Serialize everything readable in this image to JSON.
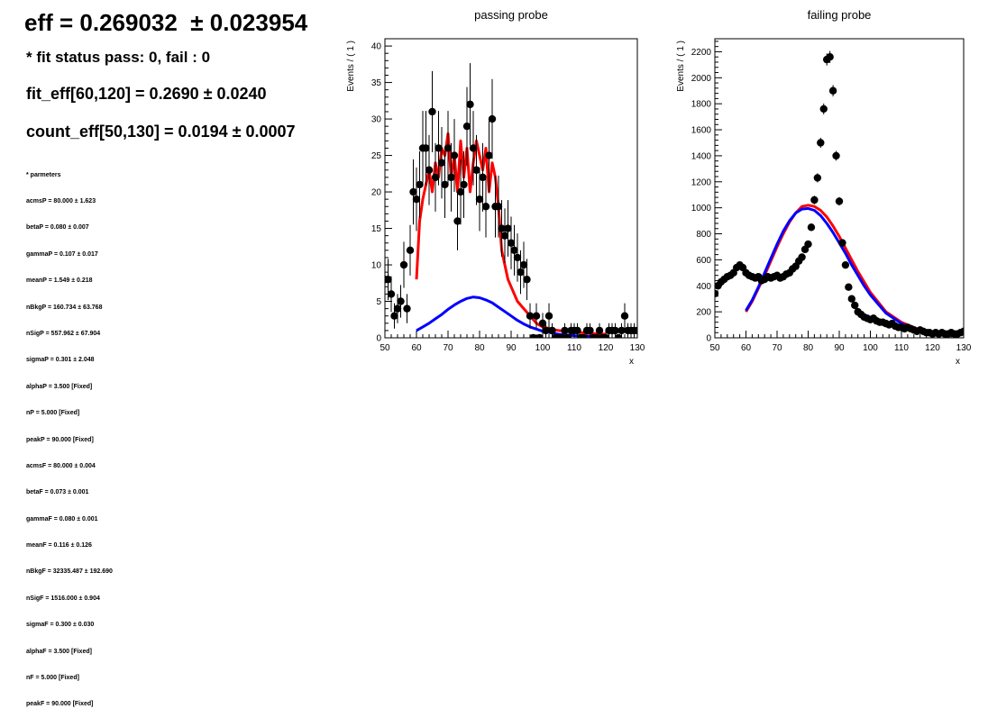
{
  "left_panel": {
    "eff_text": "eff = 0.269032  ± 0.023954",
    "fit_status": "* fit status pass: 0, fail : 0",
    "fit_eff": "fit_eff[60,120] = 0.2690 ± 0.0240",
    "count_eff": "count_eff[50,130] = 0.0194 ± 0.0007",
    "params_header": "* parmeters",
    "params": [
      "acmsP = 80.000 ± 1.623",
      "betaP = 0.080 ± 0.007",
      "gammaP = 0.107 ± 0.017",
      "meanP = 1.549 ± 0.218",
      "nBkgP = 160.734 ± 63.768",
      "nSigP = 557.962 ± 67.904",
      "sigmaP = 0.301 ± 2.048",
      "alphaP = 3.500 [Fixed]",
      "nP = 5.000 [Fixed]",
      "peakP = 90.000 [Fixed]",
      "acmsF = 80.000 ± 0.004",
      "betaF = 0.073 ± 0.001",
      "gammaF = 0.080 ± 0.001",
      "meanF = 0.116 ± 0.126",
      "nBkgF = 32335.487 ± 192.690",
      "nSigF = 1516.000 ± 0.904",
      "sigmaF = 0.300 ± 0.030",
      "alphaF = 3.500 [Fixed]",
      "nF = 5.000 [Fixed]",
      "peakF = 90.000 [Fixed]"
    ]
  },
  "colors": {
    "total_fit": "#ff0000",
    "background_fit": "#0000ff",
    "data": "#000000"
  },
  "chart_data": [
    {
      "type": "scatter",
      "title": "passing probe",
      "xlabel": "x",
      "ylabel": "Events / ( 1 )",
      "xlim": [
        50,
        130
      ],
      "ylim": [
        0,
        41
      ],
      "xticks": [
        50,
        60,
        70,
        80,
        90,
        100,
        110,
        120,
        130
      ],
      "yticks": [
        0,
        5,
        10,
        15,
        20,
        25,
        30,
        35,
        40
      ],
      "grid": false,
      "series": [
        {
          "kind": "points_with_errors",
          "x": [
            50,
            51,
            52,
            53,
            54,
            55,
            56,
            57,
            58,
            59,
            60,
            61,
            62,
            63,
            64,
            65,
            66,
            67,
            68,
            69,
            70,
            71,
            72,
            73,
            74,
            75,
            76,
            77,
            78,
            79,
            80,
            81,
            82,
            83,
            84,
            85,
            86,
            87,
            88,
            89,
            90,
            91,
            92,
            93,
            94,
            95,
            96,
            97,
            98,
            99,
            100,
            101,
            102,
            103,
            104,
            105,
            106,
            107,
            108,
            109,
            110,
            111,
            112,
            113,
            114,
            115,
            116,
            117,
            118,
            119,
            120,
            121,
            122,
            123,
            124,
            125,
            126,
            127,
            128,
            129,
            130
          ],
          "y": [
            8,
            8,
            6,
            3,
            4,
            5,
            10,
            4,
            12,
            20,
            19,
            21,
            26,
            26,
            23,
            31,
            22,
            26,
            24,
            21,
            26,
            22,
            25,
            16,
            20,
            21,
            29,
            32,
            26,
            23,
            19,
            22,
            18,
            25,
            30,
            18,
            18,
            15,
            14,
            15,
            13,
            12,
            11,
            9,
            10,
            8,
            3,
            0,
            3,
            0,
            2,
            1,
            3,
            1,
            0,
            0,
            0,
            1,
            0,
            1,
            1,
            1,
            0,
            0,
            1,
            1,
            0,
            0,
            1,
            0,
            0,
            1,
            1,
            1,
            0,
            1,
            3,
            1,
            1,
            1,
            1
          ]
        },
        {
          "kind": "line",
          "name": "total fit",
          "color": "#ff0000",
          "x": [
            60,
            61,
            62,
            63,
            64,
            65,
            66,
            67,
            68,
            69,
            70,
            71,
            72,
            73,
            74,
            75,
            76,
            77,
            78,
            79,
            80,
            81,
            82,
            83,
            84,
            85,
            86,
            87,
            88,
            89,
            90,
            92,
            94,
            96,
            98,
            100,
            105,
            110,
            115,
            120
          ],
          "y": [
            8,
            16,
            19,
            21,
            23,
            20,
            24,
            22,
            26,
            25,
            28,
            22,
            25,
            20,
            27,
            22,
            26,
            20,
            24,
            27,
            25,
            23,
            26,
            20,
            24,
            22,
            18,
            12,
            10,
            8,
            7,
            5,
            4,
            3,
            2,
            1.5,
            1.0,
            0.8,
            0.6,
            0.5
          ]
        },
        {
          "kind": "line",
          "name": "background fit",
          "color": "#0000ff",
          "x": [
            60,
            62,
            64,
            66,
            68,
            70,
            72,
            74,
            76,
            78,
            80,
            82,
            84,
            86,
            88,
            90,
            92,
            94,
            96,
            98,
            100,
            105,
            110,
            115,
            120
          ],
          "y": [
            1.0,
            1.5,
            2.0,
            2.6,
            3.2,
            3.9,
            4.5,
            5.0,
            5.4,
            5.6,
            5.5,
            5.2,
            4.8,
            4.2,
            3.6,
            3.0,
            2.4,
            1.9,
            1.5,
            1.2,
            0.9,
            0.5,
            0.3,
            0.2,
            0.1
          ]
        }
      ]
    },
    {
      "type": "scatter",
      "title": "failing probe",
      "xlabel": "x",
      "ylabel": "Events / ( 1 )",
      "xlim": [
        50,
        130
      ],
      "ylim": [
        0,
        2300
      ],
      "xticks": [
        50,
        60,
        70,
        80,
        90,
        100,
        110,
        120,
        130
      ],
      "yticks": [
        0,
        200,
        400,
        600,
        800,
        1000,
        1200,
        1400,
        1600,
        1800,
        2000,
        2200
      ],
      "grid": false,
      "series": [
        {
          "kind": "points_with_errors",
          "x": [
            50,
            51,
            52,
            53,
            54,
            55,
            56,
            57,
            58,
            59,
            60,
            61,
            62,
            63,
            64,
            65,
            66,
            67,
            68,
            69,
            70,
            71,
            72,
            73,
            74,
            75,
            76,
            77,
            78,
            79,
            80,
            81,
            82,
            83,
            84,
            85,
            86,
            87,
            88,
            89,
            90,
            91,
            92,
            93,
            94,
            95,
            96,
            97,
            98,
            99,
            100,
            101,
            102,
            103,
            104,
            105,
            106,
            107,
            108,
            109,
            110,
            111,
            112,
            113,
            114,
            115,
            116,
            117,
            118,
            119,
            120,
            121,
            122,
            123,
            124,
            125,
            126,
            127,
            128,
            129,
            130
          ],
          "y": [
            340,
            400,
            430,
            450,
            470,
            480,
            500,
            540,
            560,
            540,
            500,
            480,
            470,
            460,
            470,
            440,
            450,
            470,
            460,
            470,
            480,
            460,
            470,
            490,
            500,
            530,
            550,
            590,
            620,
            680,
            720,
            850,
            1060,
            1230,
            1500,
            1760,
            2140,
            2160,
            1900,
            1400,
            1050,
            730,
            560,
            390,
            300,
            250,
            200,
            180,
            160,
            150,
            140,
            150,
            130,
            120,
            120,
            110,
            100,
            110,
            90,
            80,
            80,
            70,
            80,
            70,
            60,
            50,
            60,
            50,
            40,
            40,
            30,
            40,
            30,
            40,
            30,
            30,
            40,
            30,
            30,
            40,
            50
          ]
        },
        {
          "kind": "line",
          "name": "total fit",
          "color": "#ff0000",
          "x": [
            60,
            62,
            64,
            66,
            68,
            70,
            72,
            74,
            76,
            78,
            80,
            82,
            84,
            86,
            88,
            90,
            92,
            94,
            96,
            98,
            100,
            105,
            110,
            115,
            120
          ],
          "y": [
            200,
            280,
            380,
            480,
            590,
            700,
            800,
            890,
            960,
            1010,
            1020,
            1010,
            980,
            930,
            860,
            780,
            690,
            600,
            510,
            430,
            350,
            200,
            120,
            70,
            40
          ]
        },
        {
          "kind": "line",
          "name": "background fit",
          "color": "#0000ff",
          "x": [
            60,
            62,
            64,
            66,
            68,
            70,
            72,
            74,
            76,
            78,
            80,
            82,
            84,
            86,
            88,
            90,
            92,
            94,
            96,
            98,
            100,
            105,
            110,
            115,
            120
          ],
          "y": [
            210,
            290,
            390,
            500,
            610,
            720,
            820,
            900,
            960,
            990,
            995,
            980,
            940,
            880,
            810,
            730,
            650,
            560,
            480,
            400,
            330,
            190,
            110,
            60,
            30
          ]
        }
      ]
    }
  ]
}
